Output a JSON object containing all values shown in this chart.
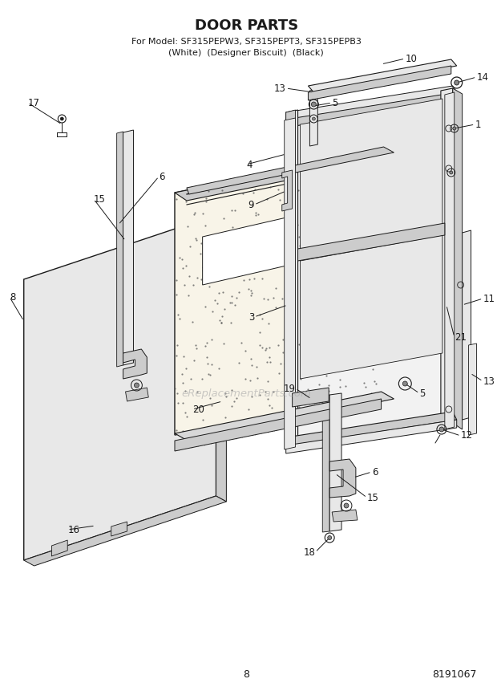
{
  "title": "DOOR PARTS",
  "subtitle1": "For Model: SF315PEPW3, SF315PEPT3, SF315PEPB3",
  "subtitle2": "(White)  (Designer Biscuit)  (Black)",
  "page_number": "8",
  "part_number": "8191067",
  "watermark": "eReplacementParts.com",
  "bg": "#ffffff",
  "lc": "#1a1a1a",
  "gray_light": "#e8e8e8",
  "gray_mid": "#cccccc",
  "gray_dark": "#888888",
  "stipple_color": "#666666",
  "label_fs": 8.5,
  "title_fs": 13,
  "sub_fs": 8
}
